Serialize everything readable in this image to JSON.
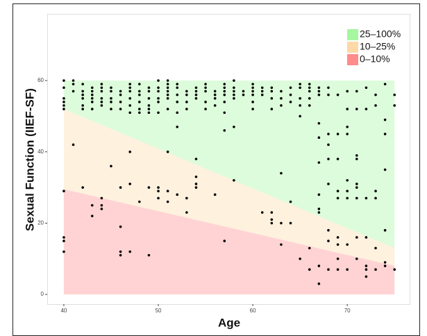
{
  "chart_data": {
    "type": "scatter",
    "xlabel": "Age",
    "ylabel": "Sexual Function (IIEF-SF)",
    "xlim": [
      38.24,
      76.6
    ],
    "ylim": [
      -2.7,
      78.7
    ],
    "xticks": [
      40,
      50,
      60,
      70
    ],
    "yticks": [
      0,
      20,
      40,
      60
    ],
    "legend_position": "upper right",
    "bands": [
      {
        "name": "25–100%",
        "color": "#a6f7a0",
        "x": [
          40,
          75
        ],
        "lower": [
          52,
          13
        ],
        "upper": [
          60,
          60
        ]
      },
      {
        "name": "10–25%",
        "color": "#fdd9a8",
        "x": [
          40,
          75
        ],
        "lower": [
          29.5,
          8
        ],
        "upper": [
          52,
          13
        ]
      },
      {
        "name": "0–10%",
        "color": "#ff8b8b",
        "x": [
          40,
          75
        ],
        "lower": [
          0,
          0
        ],
        "upper": [
          29.5,
          8
        ]
      }
    ],
    "point_color": "#000000",
    "x": [
      40,
      40,
      40,
      40,
      40,
      40,
      40,
      40,
      40,
      40,
      41,
      41,
      41,
      41,
      42,
      42,
      42,
      42,
      42,
      42,
      42,
      43,
      43,
      43,
      43,
      43,
      43,
      43,
      43,
      44,
      44,
      44,
      44,
      44,
      44,
      44,
      44,
      44,
      45,
      45,
      45,
      45,
      45,
      45,
      46,
      46,
      46,
      46,
      46,
      46,
      46,
      46,
      47,
      47,
      47,
      47,
      47,
      47,
      47,
      47,
      47,
      48,
      48,
      48,
      48,
      48,
      48,
      48,
      49,
      49,
      49,
      49,
      49,
      49,
      49,
      49,
      50,
      50,
      50,
      50,
      50,
      50,
      50,
      50,
      50,
      51,
      51,
      51,
      51,
      51,
      51,
      51,
      51,
      51,
      51,
      52,
      52,
      52,
      52,
      52,
      52,
      52,
      53,
      53,
      53,
      53,
      53,
      53,
      54,
      54,
      54,
      54,
      54,
      54,
      54,
      54,
      55,
      55,
      55,
      55,
      55,
      56,
      56,
      56,
      56,
      56,
      57,
      57,
      57,
      57,
      57,
      57,
      57,
      57,
      58,
      58,
      58,
      58,
      58,
      58,
      58,
      59,
      59,
      60,
      60,
      60,
      60,
      60,
      60,
      61,
      61,
      61,
      61,
      62,
      62,
      62,
      62,
      62,
      62,
      62,
      63,
      63,
      63,
      63,
      63,
      63,
      64,
      64,
      64,
      64,
      64,
      65,
      65,
      65,
      65,
      65,
      65,
      66,
      66,
      66,
      66,
      66,
      66,
      66,
      67,
      67,
      67,
      67,
      67,
      67,
      67,
      67,
      67,
      67,
      67,
      68,
      68,
      68,
      68,
      68,
      68,
      68,
      68,
      68,
      69,
      69,
      69,
      69,
      69,
      69,
      69,
      69,
      69,
      70,
      70,
      70,
      70,
      70,
      70,
      70,
      70,
      70,
      71,
      71,
      71,
      71,
      71,
      71,
      71,
      71,
      71,
      72,
      72,
      72,
      72,
      72,
      72,
      72,
      73,
      73,
      73,
      73,
      73,
      73,
      74,
      74,
      74,
      74,
      74,
      74,
      74,
      75,
      75,
      75
    ],
    "values": [
      60,
      58,
      55,
      54,
      53,
      52,
      29,
      16,
      15,
      12,
      60,
      59,
      57,
      42,
      59,
      57,
      56,
      55,
      53,
      52,
      30,
      58,
      57,
      56,
      55,
      54,
      52,
      25,
      22,
      59,
      58,
      57,
      55,
      54,
      53,
      27,
      25,
      24,
      58,
      57,
      55,
      54,
      52,
      36,
      57,
      56,
      54,
      52,
      30,
      19,
      12,
      11,
      59,
      58,
      57,
      55,
      53,
      51,
      40,
      31,
      12,
      59,
      57,
      56,
      54,
      52,
      51,
      26,
      58,
      57,
      55,
      53,
      52,
      51,
      30,
      11,
      60,
      58,
      57,
      55,
      54,
      51,
      30,
      29,
      27,
      60,
      59,
      58,
      57,
      56,
      55,
      52,
      40,
      29,
      26,
      59,
      58,
      56,
      54,
      51,
      47,
      28,
      57,
      56,
      54,
      52,
      27,
      23,
      58,
      57,
      56,
      55,
      38,
      33,
      31,
      30,
      59,
      58,
      57,
      54,
      52,
      57,
      56,
      55,
      53,
      28,
      59,
      58,
      57,
      56,
      54,
      51,
      46,
      15,
      60,
      58,
      57,
      56,
      55,
      47,
      32,
      57,
      56,
      59,
      58,
      57,
      56,
      54,
      52,
      58,
      57,
      56,
      23,
      58,
      57,
      55,
      52,
      23,
      21,
      20,
      57,
      55,
      53,
      34,
      20,
      14,
      58,
      56,
      54,
      26,
      20,
      59,
      58,
      55,
      53,
      50,
      10,
      59,
      58,
      57,
      55,
      53,
      13,
      7,
      58,
      57,
      56,
      48,
      44,
      37,
      28,
      24,
      23,
      8,
      3,
      58,
      56,
      45,
      42,
      38,
      31,
      18,
      15,
      7,
      56,
      45,
      38,
      29,
      27,
      16,
      14,
      10,
      7,
      57,
      52,
      47,
      45,
      32,
      29,
      27,
      14,
      7,
      57,
      52,
      39,
      38,
      31,
      30,
      27,
      16,
      10,
      58,
      52,
      27,
      16,
      8,
      7,
      5,
      56,
      53,
      29,
      27,
      13,
      7,
      59,
      49,
      45,
      35,
      18,
      9,
      8,
      56,
      53,
      7
    ]
  }
}
